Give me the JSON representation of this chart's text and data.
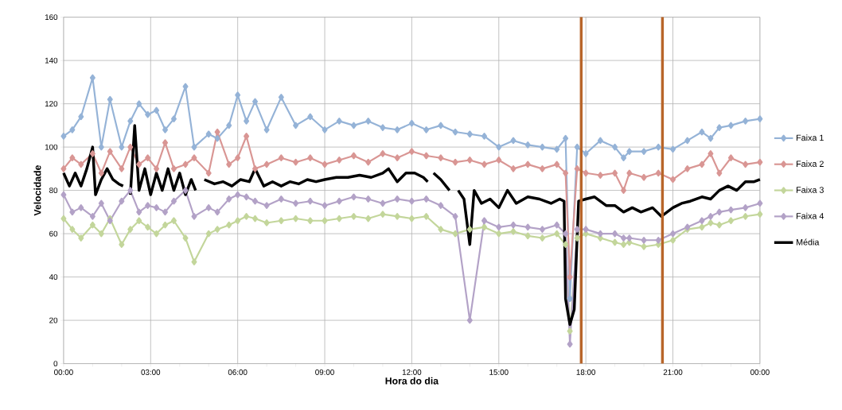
{
  "chart_data": {
    "type": "line",
    "xlabel": "Hora do dia",
    "ylabel": "Velocidade",
    "xlim": [
      0,
      24
    ],
    "ylim": [
      0,
      160
    ],
    "xticks": [
      {
        "value": 0,
        "label": "00:00"
      },
      {
        "value": 3,
        "label": "03:00"
      },
      {
        "value": 6,
        "label": "06:00"
      },
      {
        "value": 9,
        "label": "09:00"
      },
      {
        "value": 12,
        "label": "12:00"
      },
      {
        "value": 15,
        "label": "15:00"
      },
      {
        "value": 18,
        "label": "18:00"
      },
      {
        "value": 21,
        "label": "21:00"
      },
      {
        "value": 24,
        "label": "00:00"
      }
    ],
    "yticks": [
      0,
      20,
      40,
      60,
      80,
      100,
      120,
      140,
      160
    ],
    "grid": true,
    "legend": "right",
    "marker": "diamond",
    "x": [
      0,
      0.3,
      0.6,
      1.0,
      1.3,
      1.6,
      2.0,
      2.3,
      2.6,
      2.9,
      3.2,
      3.5,
      3.8,
      4.2,
      4.5,
      5.0,
      5.3,
      5.7,
      6.0,
      6.3,
      6.6,
      7.0,
      7.5,
      8.0,
      8.5,
      9.0,
      9.5,
      10.0,
      10.5,
      11.0,
      11.5,
      12.0,
      12.5,
      13.0,
      13.5,
      14.0,
      14.5,
      15.0,
      15.5,
      16.0,
      16.5,
      17.0,
      17.3,
      17.45,
      17.7,
      18.0,
      18.5,
      19.0,
      19.3,
      19.5,
      20.0,
      20.5,
      21.0,
      21.5,
      22.0,
      22.3,
      22.6,
      23.0,
      23.5,
      24.0
    ],
    "series": [
      {
        "name": "Faixa 1",
        "color": "#95b3d7",
        "values": [
          105,
          108,
          114,
          132,
          100,
          122,
          100,
          112,
          120,
          115,
          117,
          108,
          113,
          128,
          100,
          106,
          104,
          110,
          124,
          112,
          121,
          108,
          123,
          110,
          114,
          108,
          112,
          110,
          112,
          109,
          108,
          111,
          108,
          110,
          107,
          106,
          105,
          100,
          103,
          101,
          100,
          99,
          104,
          30,
          100,
          97,
          103,
          100,
          95,
          98,
          98,
          100,
          99,
          103,
          107,
          104,
          109,
          110,
          112,
          113
        ]
      },
      {
        "name": "Faixa 2",
        "color": "#d99694",
        "values": [
          90,
          95,
          92,
          97,
          88,
          98,
          90,
          100,
          92,
          95,
          90,
          102,
          90,
          92,
          95,
          88,
          107,
          92,
          95,
          105,
          90,
          92,
          95,
          93,
          95,
          92,
          94,
          96,
          93,
          97,
          95,
          98,
          96,
          95,
          93,
          94,
          92,
          94,
          90,
          92,
          90,
          92,
          88,
          40,
          90,
          88,
          87,
          88,
          80,
          88,
          86,
          88,
          85,
          90,
          92,
          97,
          88,
          95,
          92,
          93
        ]
      },
      {
        "name": "Faixa 3",
        "color": "#c3d69b",
        "values": [
          67,
          62,
          58,
          64,
          60,
          67,
          55,
          62,
          66,
          63,
          60,
          64,
          66,
          58,
          47,
          60,
          62,
          64,
          66,
          68,
          67,
          65,
          66,
          67,
          66,
          66,
          67,
          68,
          67,
          69,
          68,
          67,
          68,
          62,
          60,
          62,
          63,
          60,
          61,
          59,
          58,
          60,
          55,
          15,
          58,
          60,
          58,
          56,
          55,
          56,
          54,
          55,
          57,
          62,
          63,
          65,
          64,
          66,
          68,
          69
        ]
      },
      {
        "name": "Faixa 4",
        "color": "#b3a2c7",
        "values": [
          78,
          70,
          72,
          68,
          74,
          66,
          75,
          80,
          70,
          73,
          72,
          70,
          75,
          80,
          68,
          72,
          70,
          76,
          78,
          77,
          75,
          73,
          76,
          74,
          75,
          73,
          75,
          77,
          76,
          74,
          76,
          75,
          76,
          73,
          68,
          20,
          66,
          63,
          64,
          63,
          62,
          64,
          60,
          9,
          62,
          62,
          60,
          60,
          58,
          58,
          57,
          57,
          60,
          63,
          66,
          68,
          70,
          71,
          72,
          74
        ]
      },
      {
        "name": "Média",
        "color": "#000000",
        "marker": "none",
        "x": [
          0,
          0.2,
          0.4,
          0.6,
          0.8,
          1.0,
          1.1,
          1.3,
          1.5,
          1.7,
          1.9,
          2.05,
          2.15,
          2.3,
          2.45,
          2.6,
          2.8,
          3.0,
          3.2,
          3.4,
          3.6,
          3.8,
          4.0,
          4.2,
          4.4,
          4.55,
          4.7,
          4.85,
          5.2,
          5.5,
          5.8,
          6.1,
          6.4,
          6.6,
          6.9,
          7.2,
          7.5,
          7.8,
          8.1,
          8.4,
          8.7,
          9.0,
          9.4,
          9.8,
          10.2,
          10.6,
          11.0,
          11.2,
          11.5,
          11.8,
          12.1,
          12.4,
          12.55,
          12.65,
          12.75,
          13.0,
          13.3,
          13.45,
          13.6,
          13.8,
          14.0,
          14.15,
          14.4,
          14.7,
          15.0,
          15.3,
          15.6,
          16.0,
          16.4,
          16.8,
          17.1,
          17.25,
          17.3,
          17.45,
          17.6,
          17.75,
          18.0,
          18.3,
          18.7,
          19.0,
          19.3,
          19.6,
          19.9,
          20.3,
          20.6,
          21.0,
          21.3,
          21.6,
          22.0,
          22.3,
          22.6,
          22.9,
          23.2,
          23.5,
          23.8,
          24.0
        ],
        "values": [
          88,
          82,
          88,
          82,
          90,
          100,
          78,
          85,
          90,
          85,
          83,
          82,
          null,
          78,
          110,
          80,
          90,
          78,
          88,
          80,
          90,
          80,
          88,
          78,
          85,
          80,
          null,
          85,
          83,
          84,
          82,
          85,
          84,
          90,
          82,
          84,
          82,
          84,
          83,
          85,
          84,
          85,
          86,
          86,
          87,
          86,
          88,
          90,
          84,
          88,
          88,
          86,
          84,
          null,
          88,
          85,
          80,
          null,
          80,
          76,
          55,
          80,
          74,
          76,
          72,
          80,
          74,
          77,
          76,
          74,
          76,
          75,
          30,
          18,
          25,
          75,
          76,
          77,
          73,
          73,
          70,
          72,
          70,
          72,
          68,
          72,
          74,
          75,
          77,
          76,
          80,
          82,
          80,
          84,
          84,
          85
        ]
      }
    ],
    "ref_lines": [
      {
        "axis": "x",
        "value": 17.84,
        "color": "#b8652a"
      },
      {
        "axis": "x",
        "value": 20.64,
        "color": "#b8652a"
      }
    ]
  }
}
